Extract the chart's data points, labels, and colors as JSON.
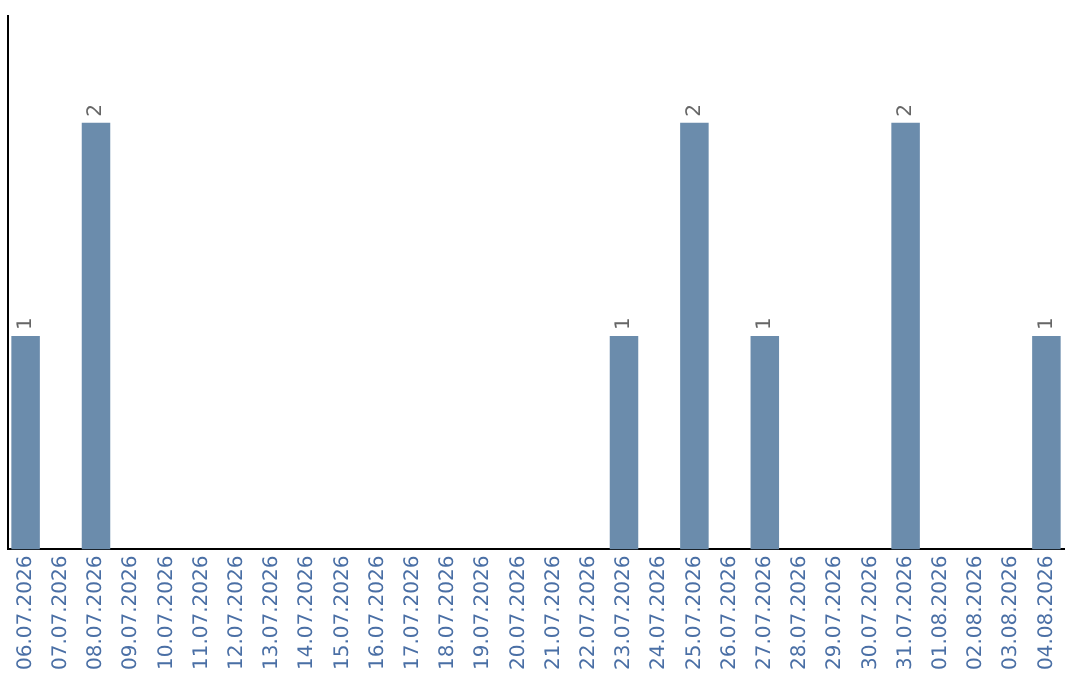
{
  "chart_data": {
    "type": "bar",
    "categories": [
      "06.07.2026",
      "07.07.2026",
      "08.07.2026",
      "09.07.2026",
      "10.07.2026",
      "11.07.2026",
      "12.07.2026",
      "13.07.2026",
      "14.07.2026",
      "15.07.2026",
      "16.07.2026",
      "17.07.2026",
      "18.07.2026",
      "19.07.2026",
      "20.07.2026",
      "21.07.2026",
      "22.07.2026",
      "23.07.2026",
      "24.07.2026",
      "25.07.2026",
      "26.07.2026",
      "27.07.2026",
      "28.07.2026",
      "29.07.2026",
      "30.07.2026",
      "31.07.2026",
      "01.08.2026",
      "02.08.2026",
      "03.08.2026",
      "04.08.2026"
    ],
    "values": [
      1,
      0,
      2,
      0,
      0,
      0,
      0,
      0,
      0,
      0,
      0,
      0,
      0,
      0,
      0,
      0,
      0,
      1,
      0,
      2,
      0,
      1,
      0,
      0,
      0,
      2,
      0,
      0,
      0,
      1
    ],
    "value_labels": [
      "1",
      null,
      "2",
      null,
      null,
      null,
      null,
      null,
      null,
      null,
      null,
      null,
      null,
      null,
      null,
      null,
      null,
      "1",
      null,
      "2",
      null,
      "1",
      null,
      null,
      null,
      "2",
      null,
      null,
      null,
      "1"
    ],
    "color": "#6b8cac",
    "tick_labels": "x",
    "grid": false,
    "legend": false
  }
}
